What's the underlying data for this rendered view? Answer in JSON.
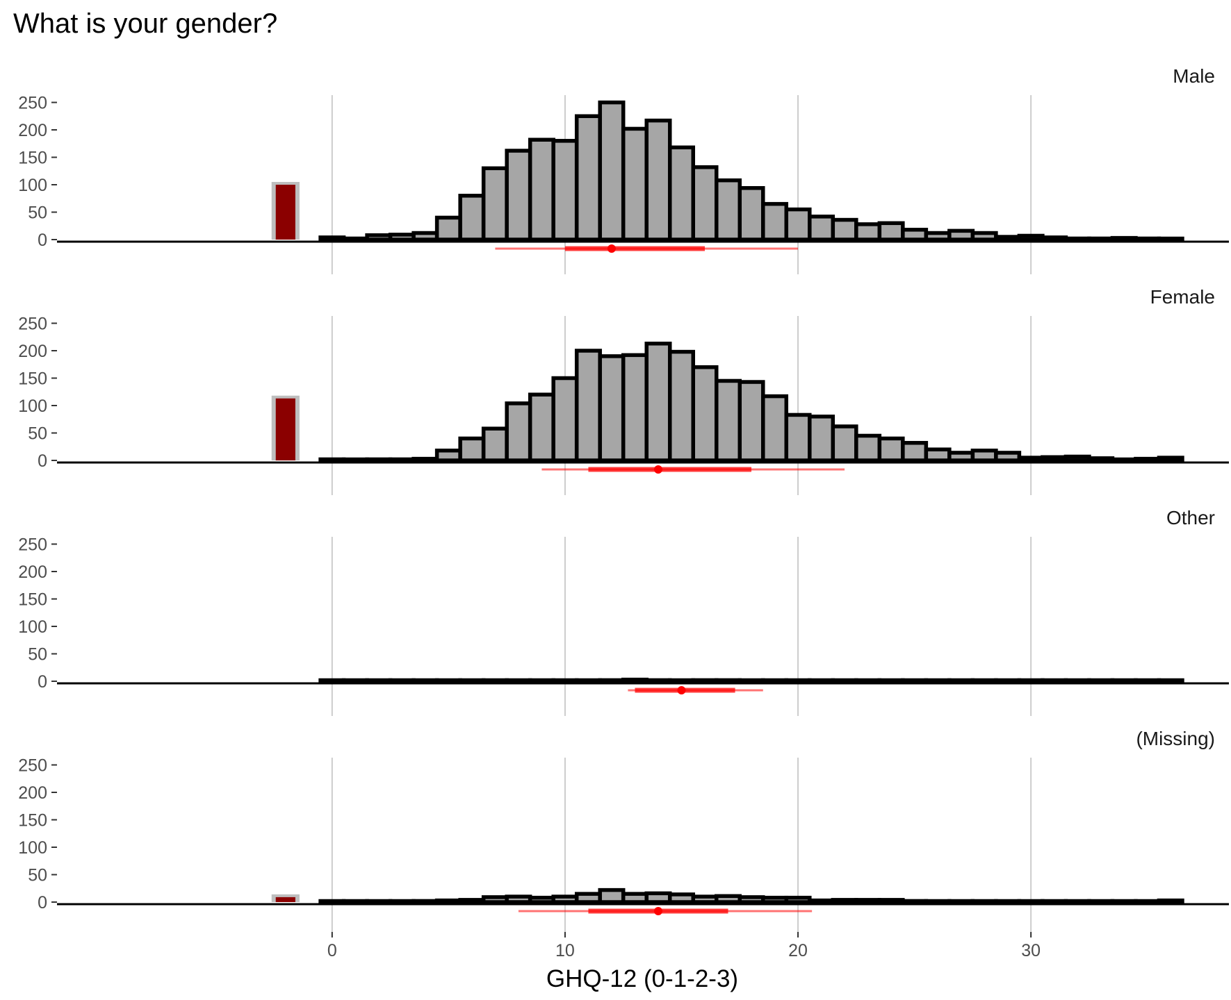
{
  "chart_data": {
    "type": "bar",
    "title": "What is your gender?",
    "xlabel": "GHQ-12 (0-1-2-3)",
    "ylabel": "",
    "xlim": [
      -6.5,
      38.5
    ],
    "ylim": [
      0,
      260
    ],
    "x_ticks": [
      0,
      10,
      20,
      30
    ],
    "y_ticks": [
      0,
      50,
      100,
      150,
      200,
      250
    ],
    "grid": "vertical major gridlines",
    "bin_centers": [
      0,
      1,
      2,
      3,
      4,
      5,
      6,
      7,
      8,
      9,
      10,
      11,
      12,
      13,
      14,
      15,
      16,
      17,
      18,
      19,
      20,
      21,
      22,
      23,
      24,
      25,
      26,
      27,
      28,
      29,
      30,
      31,
      32,
      33,
      34,
      35,
      36
    ],
    "missing_bar_position": -2,
    "panels": [
      {
        "label": "Male",
        "missing_count": 100,
        "values": [
          4,
          2,
          8,
          9,
          12,
          40,
          80,
          130,
          162,
          182,
          180,
          225,
          250,
          202,
          217,
          168,
          132,
          108,
          94,
          65,
          55,
          42,
          36,
          28,
          30,
          18,
          12,
          16,
          12,
          5,
          7,
          4,
          2,
          2,
          3,
          2,
          1
        ],
        "summary": {
          "median": 12,
          "q1": 10,
          "q3": 16,
          "lower": 7,
          "upper": 20
        }
      },
      {
        "label": "Female",
        "missing_count": 113,
        "values": [
          2,
          1,
          2,
          2,
          3,
          18,
          40,
          58,
          104,
          120,
          150,
          200,
          190,
          192,
          213,
          198,
          170,
          145,
          143,
          117,
          83,
          80,
          62,
          45,
          40,
          32,
          20,
          14,
          18,
          14,
          5,
          6,
          7,
          4,
          1,
          3,
          5
        ],
        "summary": {
          "median": 14,
          "q1": 11,
          "q3": 18,
          "lower": 9,
          "upper": 22
        }
      },
      {
        "label": "Other",
        "missing_count": 0,
        "values": [
          1,
          1,
          1,
          1,
          1,
          1,
          1,
          1,
          1,
          1,
          1,
          1,
          2,
          3,
          2,
          1,
          2,
          2,
          1,
          1,
          1,
          1,
          1,
          1,
          1,
          1,
          1,
          1,
          1,
          1,
          1,
          1,
          1,
          1,
          1,
          1,
          1
        ],
        "summary": {
          "median": 15,
          "q1": 13,
          "q3": 17.3,
          "lower": 12.7,
          "upper": 18.5
        }
      },
      {
        "label": "(Missing)",
        "missing_count": 9,
        "values": [
          1,
          1,
          1,
          1,
          2,
          3,
          4,
          9,
          10,
          8,
          10,
          15,
          22,
          15,
          16,
          14,
          10,
          11,
          9,
          8,
          8,
          3,
          4,
          4,
          4,
          2,
          1,
          1,
          1,
          1,
          1,
          1,
          1,
          1,
          1,
          1,
          3
        ],
        "summary": {
          "median": 14,
          "q1": 11,
          "q3": 17,
          "lower": 8,
          "upper": 20.6
        }
      }
    ],
    "colors": {
      "bar_fill": "#a6a6a6",
      "bar_stroke": "#000000",
      "missing_fill": "#8b0000",
      "missing_border": "#bebebe",
      "summary": "#ff0000",
      "grid": "#cccccc"
    }
  }
}
